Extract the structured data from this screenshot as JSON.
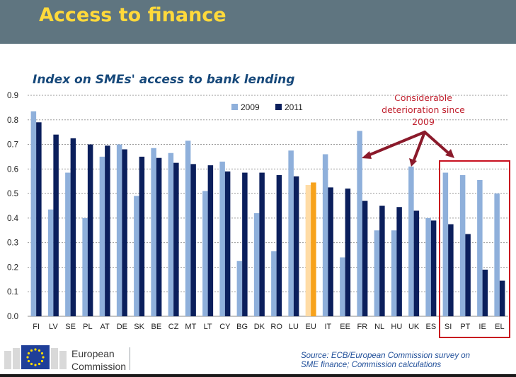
{
  "header": {
    "title": "Access to finance"
  },
  "chart_title": "Index on SMEs' access to bank lending",
  "annotation": {
    "lines": [
      "Considerable",
      "deterioration since",
      "2009"
    ]
  },
  "source": {
    "lines": [
      "Source: ECB/European Commission survey on",
      "SME finance; Commission calculations"
    ]
  },
  "logo": {
    "line1": "European",
    "line2": "Commission"
  },
  "colors": {
    "header_bg": "#5f7580",
    "title": "#ffd93b",
    "series_2009": "#8fb0db",
    "series_2011": "#0b1f5c",
    "eu_2009": "#ffdca6",
    "eu_2011": "#f7a21b",
    "arrows": "#8b1a2b",
    "highlight_box": "#c8101f"
  },
  "chart_data": {
    "type": "bar",
    "title": "Index on SMEs' access to bank lending",
    "xlabel": "",
    "ylabel": "",
    "ylim": [
      0,
      0.9
    ],
    "yticks": [
      "0.0",
      "0.1",
      "0.2",
      "0.3",
      "0.4",
      "0.5",
      "0.6",
      "0.7",
      "0.8",
      "0.9"
    ],
    "grid": true,
    "legend_position": "top",
    "categories": [
      "FI",
      "LV",
      "SE",
      "PL",
      "AT",
      "DE",
      "SK",
      "BE",
      "CZ",
      "MT",
      "LT",
      "CY",
      "BG",
      "DK",
      "RO",
      "LU",
      "EU",
      "IT",
      "EE",
      "FR",
      "NL",
      "HU",
      "UK",
      "ES",
      "SI",
      "PT",
      "IE",
      "EL"
    ],
    "series": [
      {
        "name": "2009",
        "values": [
          0.835,
          0.435,
          0.585,
          0.4,
          0.65,
          0.7,
          0.49,
          0.685,
          0.665,
          0.715,
          0.51,
          0.63,
          0.225,
          0.42,
          0.265,
          0.675,
          0.535,
          0.66,
          0.24,
          0.755,
          0.35,
          0.35,
          0.61,
          0.4,
          0.585,
          0.575,
          0.555,
          0.5
        ]
      },
      {
        "name": "2011",
        "values": [
          0.79,
          0.74,
          0.725,
          0.7,
          0.695,
          0.68,
          0.65,
          0.645,
          0.625,
          0.62,
          0.615,
          0.59,
          0.585,
          0.585,
          0.575,
          0.57,
          0.545,
          0.525,
          0.52,
          0.47,
          0.45,
          0.445,
          0.43,
          0.39,
          0.375,
          0.335,
          0.19,
          0.145
        ]
      }
    ]
  }
}
